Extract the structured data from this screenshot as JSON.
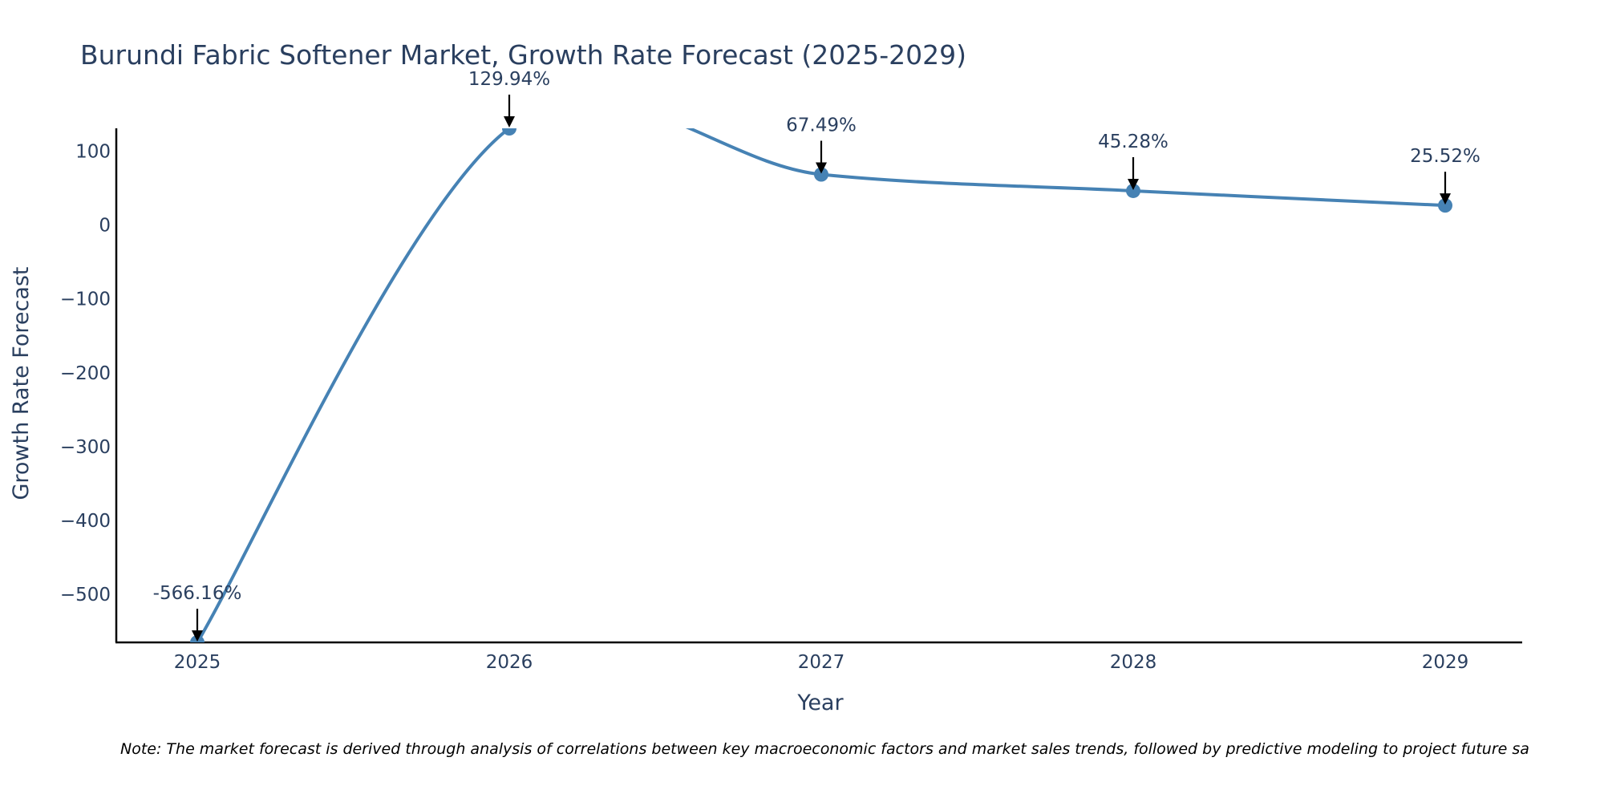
{
  "chart_data": {
    "type": "line",
    "title": "Burundi Fabric Softener Market, Growth Rate Forecast (2025-2029)",
    "xlabel": "Year",
    "ylabel": "Growth Rate Forecast",
    "categories": [
      "2025",
      "2026",
      "2027",
      "2028",
      "2029"
    ],
    "series": [
      {
        "name": "Growth Rate Forecast",
        "values": [
          -566.16,
          129.94,
          67.49,
          45.28,
          25.52
        ],
        "labels": [
          "-566.16%",
          "129.94%",
          "67.49%",
          "45.28%",
          "25.52%"
        ]
      }
    ],
    "ylim": [
      -566.16,
      129.94
    ],
    "yticks": [
      100,
      0,
      -100,
      -200,
      -300,
      -400,
      -500
    ],
    "ytick_labels": [
      "100",
      "0",
      "−100",
      "−200",
      "−300",
      "−400",
      "−500"
    ],
    "grid": false,
    "line_color": "#4682B4",
    "note": "Note: The market forecast is derived through analysis of correlations between key macroeconomic factors and market sales trends, followed by predictive modeling to project future sa"
  }
}
